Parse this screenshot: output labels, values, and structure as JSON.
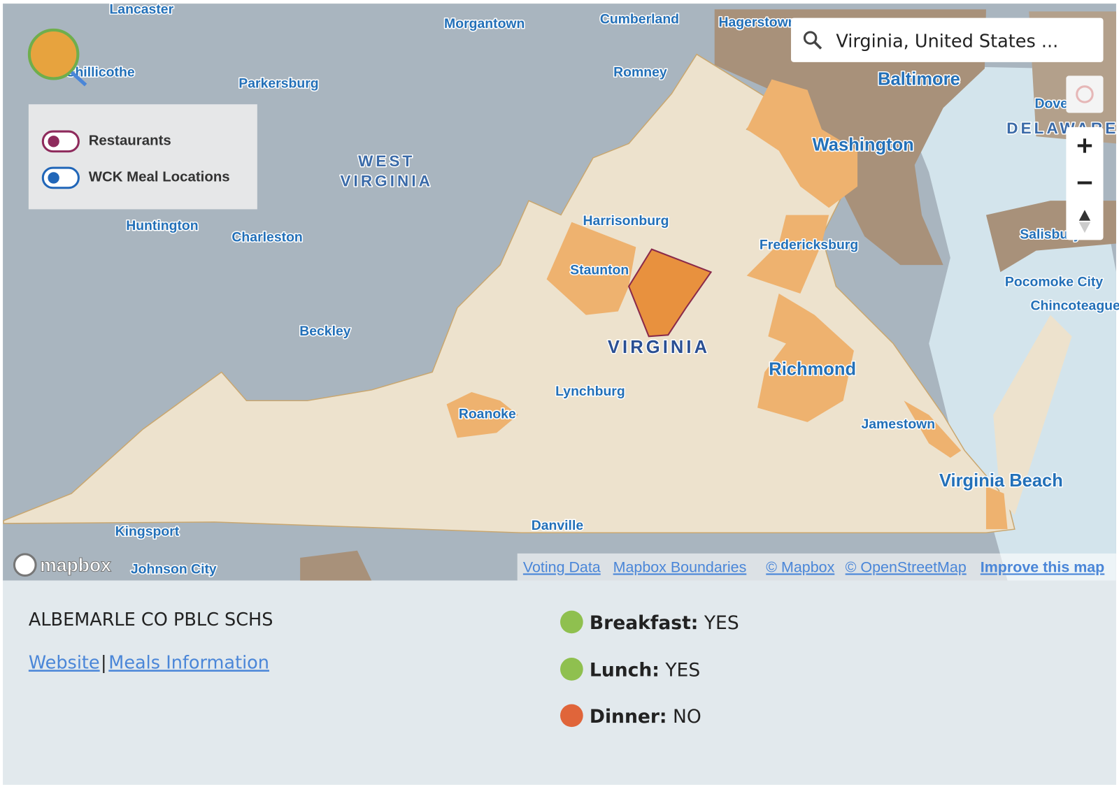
{
  "search": {
    "query": "Virginia, United States ..."
  },
  "legend": {
    "items": [
      "Restaurants",
      "WCK Meal Locations"
    ]
  },
  "map": {
    "labels": [
      "Lancaster",
      "Morgantown",
      "Cumberland",
      "Hagerstown",
      "Chillicothe",
      "Parkersburg",
      "Romney",
      "Baltimore",
      "Dover",
      "DELAWARE",
      "WEST",
      "VIRGINIA",
      "Washington",
      "Harrisonburg",
      "Huntington",
      "Charleston",
      "Staunton",
      "Fredericksburg",
      "Salisbury",
      "Pocomoke City",
      "Chincoteague",
      "VIRGINIA",
      "Beckley",
      "Richmond",
      "Lynchburg",
      "Roanoke",
      "Jamestown",
      "Virginia Beach",
      "Kingsport",
      "Danville",
      "Johnson City"
    ]
  },
  "attribution": {
    "logo": "mapbox",
    "links": [
      "Voting Data",
      "Mapbox Boundaries",
      "© Mapbox",
      "© OpenStreetMap",
      "Improve this map"
    ]
  },
  "info": {
    "name": "ALBEMARLE CO PBLC SCHS",
    "links": [
      "Website",
      "Meals Information"
    ],
    "meals": [
      {
        "label": "Breakfast:",
        "value": "YES"
      },
      {
        "label": "Lunch:",
        "value": "YES"
      },
      {
        "label": "Dinner:",
        "value": "NO"
      }
    ]
  }
}
